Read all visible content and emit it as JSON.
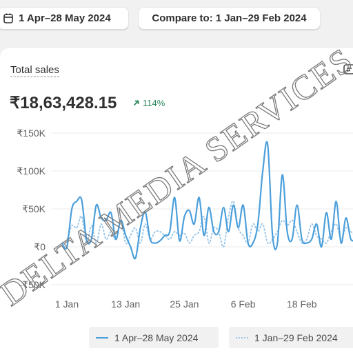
{
  "filters": {
    "date_range": "1 Apr–28 May 2024",
    "compare": "Compare to: 1 Jan–29 Feb 2024"
  },
  "card": {
    "title": "Total sales",
    "total": "₹18,63,428.15",
    "change": "114%",
    "action_icon": "chart-options-icon"
  },
  "colors": {
    "current": "#4b9fdb",
    "previous": "#9cc7ea",
    "positive": "#29845a"
  },
  "chart_data": {
    "type": "line",
    "ylim": [
      -50000,
      150000
    ],
    "yticks": [
      {
        "label": "₹150K",
        "value": 150000
      },
      {
        "label": "₹100K",
        "value": 100000
      },
      {
        "label": "₹50K",
        "value": 50000
      },
      {
        "label": "₹0",
        "value": 0
      },
      {
        "label": "-₹50K",
        "value": -50000
      }
    ],
    "xticks": [
      {
        "label": "1 Jan",
        "index": 0
      },
      {
        "label": "13 Jan",
        "index": 12
      },
      {
        "label": "25 Jan",
        "index": 24
      },
      {
        "label": "6 Feb",
        "index": 36
      },
      {
        "label": "18 Feb",
        "index": 48
      }
    ],
    "series": [
      {
        "name": "1 Apr–28 May 2024",
        "style": "solid",
        "values": [
          5000,
          0,
          50000,
          60000,
          62000,
          10000,
          10000,
          55000,
          38000,
          35000,
          45000,
          10000,
          35000,
          15000,
          0,
          -15000,
          25000,
          46000,
          10000,
          5000,
          8000,
          15000,
          20000,
          65000,
          8000,
          40000,
          48000,
          30000,
          65000,
          15000,
          52000,
          20000,
          20000,
          52000,
          20000,
          55000,
          25000,
          55000,
          5000,
          5000,
          30000,
          100000,
          135000,
          15000,
          5000,
          95000,
          20000,
          10000,
          55000,
          10000,
          5000,
          10000,
          30000,
          0,
          45000,
          10000,
          60000,
          5000,
          38000,
          10000,
          10000,
          10000
        ]
      },
      {
        "name": "1 Jan–29 Feb 2024",
        "style": "dotted",
        "values": [
          5000,
          10000,
          28000,
          25000,
          40000,
          5000,
          28000,
          5000,
          30000,
          10000,
          20000,
          10000,
          35000,
          5000,
          15000,
          25000,
          5000,
          30000,
          10000,
          20000,
          20000,
          15000,
          10000,
          20000,
          15000,
          18000,
          5000,
          15000,
          20000,
          40000,
          5000,
          25000,
          20000,
          0,
          40000,
          60000,
          25000,
          15000,
          5000,
          30000,
          20000,
          30000,
          5000,
          10000,
          20000,
          35000,
          28000,
          35000,
          20000,
          5000,
          10000,
          30000,
          15000,
          10000,
          5000,
          20000,
          30000,
          10000,
          25000,
          20000,
          15000,
          20000
        ]
      }
    ]
  },
  "legend": {
    "current": "1 Apr–28 May 2024",
    "previous": "1 Jan–29 Feb 2024"
  },
  "watermark": {
    "text": "DELTA MEDIA SERVICES"
  }
}
